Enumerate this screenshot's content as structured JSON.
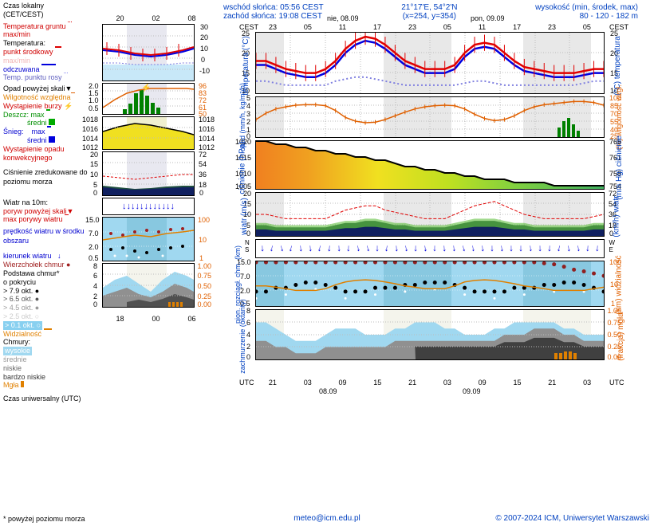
{
  "header": {
    "sunrise": "wschód słońca: 05:56 CEST",
    "sunset": "zachód słońca: 19:08 CEST",
    "coords": "21°17'E, 54°2'N",
    "grid": "(x=254, y=354)",
    "alt_label": "wysokość (min, środek, max)",
    "alt_vals": "80 - 120 - 182 m",
    "date1": "nie, 08.09",
    "date2": "pon, 09.09"
  },
  "legend": {
    "czas_lokalny": "Czas lokalny",
    "tz": "(CET/CEST)",
    "temp_gruntu": "Temperatura gruntu",
    "max_min": "max/min",
    "temp": "Temperatura:",
    "punkt_srodkowy": "punkt środkowy",
    "max_min2": "max/min",
    "odczuwana": "odczuwana",
    "temp_rosy": "Temp. punktu rosy",
    "opad_skali": "Opad powyżej skali",
    "wilgotnosc": "Wilgotność względna",
    "burza": "Wystąpienie burzy",
    "deszcz": "Deszcz:",
    "max": "max",
    "sredni": "średni",
    "snieg": "Śnieg:",
    "konwek": "Wystąpienie opadu konwekcyjnego",
    "cisnienie": "Ciśnienie zredukowane do poziomu morza",
    "wiatr_10m": "Wiatr na 10m:",
    "poryw_skali": "poryw powyżej skali",
    "max_porywy": "max porywy wiatru",
    "predkosc": "prędkość wiatru w środku obszaru",
    "kierunek": "kierunek wiatru",
    "wierzcholek": "Wierzchołek chmur",
    "podstawa": "Podstawa chmur*",
    "pokrycie": "o pokryciu",
    "okt79": "> 7.9 okt.",
    "okt65": "> 6.5 okt.",
    "okt45": "> 4.5 okt.",
    "okt25": "> 2.5 okt.",
    "okt01": "> 0.1 okt.",
    "widzialnosc": "Widzialność",
    "chmury": "Chmury:",
    "wysokie": "wysokie",
    "srednie": "średnie",
    "niskie": "niskie",
    "bardzo_niskie": "bardzo niskie",
    "mgla": "Mgła",
    "czas_utc": "Czas uniwersalny (UTC)",
    "footnote": "* powyżej poziomu morza"
  },
  "axis": {
    "cest": "CEST",
    "utc": "UTC",
    "ns": "N",
    "ss": "S",
    "es": "E",
    "ws": "W"
  },
  "footer": {
    "email": "meteo@icm.edu.pl",
    "copy": "© 2007-2024 ICM, Uniwersytet Warszawski"
  },
  "charts": {
    "temp": {
      "type": "line",
      "ylim_left": [
        -10,
        30
      ],
      "yticks_left": [
        -10,
        0,
        10,
        20,
        30
      ],
      "ylim_right_large": [
        10,
        25
      ],
      "yticks_right_large": [
        10,
        15,
        20,
        25
      ],
      "red_line": [
        18,
        18,
        17,
        16,
        15.5,
        15,
        15,
        16,
        18,
        21,
        23,
        24,
        23.5,
        22,
        20,
        18,
        17,
        16,
        16,
        16,
        17,
        20,
        22,
        22.5,
        22,
        20,
        18,
        16.5,
        16,
        15.5,
        15,
        15,
        15,
        15.5,
        16,
        16
      ],
      "blue_line": [
        17,
        17,
        16,
        15,
        14.5,
        14,
        14,
        15,
        17,
        20,
        22,
        23,
        22.5,
        21,
        19,
        17,
        16,
        15,
        15,
        15,
        16,
        19,
        21,
        21.5,
        21,
        19,
        17,
        15.5,
        15,
        14.5,
        14,
        14,
        14,
        14.5,
        15,
        15
      ],
      "purple_dotted": [
        13,
        13,
        12.5,
        12,
        12,
        12,
        12,
        12,
        13,
        13.5,
        14,
        14,
        13.5,
        13,
        12.5,
        12,
        12,
        12,
        12,
        12,
        12,
        12.5,
        13,
        13,
        12.5,
        12,
        12,
        12,
        12,
        12,
        12,
        12,
        12,
        12.5,
        13,
        13
      ],
      "colors": {
        "red": "#e00000",
        "blue": "#0000e0",
        "purple": "#8080e0",
        "bg_sky": "#a0d0f0"
      }
    },
    "precip": {
      "type": "bar+line",
      "ylim_left": [
        0,
        2.0
      ],
      "yticks_left": [
        0.5,
        1.0,
        1.5,
        2.0
      ],
      "ylim_right": [
        50,
        96
      ],
      "yticks_right": [
        50,
        61,
        72,
        83,
        96
      ],
      "ylim_right_large": [
        25,
        100
      ],
      "yticks_right_large": [
        25,
        40,
        55,
        70,
        85,
        100
      ],
      "ylim_left_large": [
        0,
        5
      ],
      "yticks_left_large": [
        0,
        1,
        2,
        3,
        4,
        5
      ],
      "humidity_line": [
        58,
        70,
        78,
        82,
        85,
        86,
        86,
        84,
        75,
        62,
        55,
        52,
        53,
        58,
        65,
        72,
        78,
        82,
        84,
        85,
        84,
        78,
        68,
        60,
        56,
        58,
        65,
        75,
        82,
        86,
        88,
        90,
        92,
        92,
        90,
        85
      ],
      "green_bars_small": [
        0,
        0,
        0.2,
        0.5,
        1.2,
        1.4,
        1.0,
        0.8,
        0.3,
        0,
        0,
        0
      ],
      "colors": {
        "green": "#008000",
        "orange": "#e06000"
      }
    },
    "press": {
      "type": "area",
      "ylim_left_small": [
        1012,
        1018
      ],
      "yticks_left_small": [
        1012,
        1014,
        1016,
        1018
      ],
      "ylim_left_large": [
        1005,
        1020
      ],
      "yticks_left_large": [
        1005,
        1010,
        1015,
        1020
      ],
      "ylim_right_large": [
        754,
        765
      ],
      "yticks_right_large": [
        754,
        758,
        761,
        765
      ],
      "values": [
        1020,
        1020,
        1019,
        1019,
        1018,
        1018,
        1017,
        1017,
        1016,
        1016,
        1015,
        1015,
        1014,
        1014,
        1013,
        1012,
        1012,
        1011,
        1011,
        1010,
        1010,
        1009,
        1009,
        1008,
        1008,
        1008,
        1007,
        1007,
        1007,
        1007,
        1006,
        1006,
        1006,
        1006,
        1006,
        1006
      ],
      "gradient_colors": [
        "#f08020",
        "#f0b020",
        "#f0e020",
        "#d0e020",
        "#a0e020",
        "#60d040",
        "#40c060"
      ]
    },
    "wind": {
      "type": "area+line",
      "ylim_left": [
        0,
        20
      ],
      "yticks_left": [
        0,
        5,
        10,
        15,
        20
      ],
      "ylim_right": [
        0,
        72
      ],
      "yticks_right": [
        0,
        18,
        36,
        54,
        72
      ],
      "speed": [
        5,
        5,
        4,
        4,
        4,
        4,
        4,
        4,
        5,
        6,
        6,
        7,
        7,
        6,
        5,
        5,
        4,
        4,
        4,
        4,
        5,
        6,
        7,
        7,
        7,
        6,
        5,
        5,
        4,
        4,
        4,
        4,
        4,
        4,
        5,
        5
      ],
      "gust": [
        10,
        10,
        9,
        8,
        8,
        8,
        8,
        8,
        10,
        12,
        13,
        14,
        14,
        12,
        11,
        10,
        9,
        8,
        8,
        8,
        10,
        12,
        14,
        15,
        16,
        14,
        12,
        10,
        9,
        8,
        8,
        8,
        8,
        8,
        9,
        10
      ],
      "colors": {
        "dark_green": "#205030",
        "mid_green": "#308040",
        "light_green": "#60c040",
        "red_dash": "#e00000",
        "navy": "#102060"
      }
    },
    "winddir": {
      "arrows_count": 36,
      "color": "#0000e0"
    },
    "clouds": {
      "type": "scatter+line",
      "ylim_left": [
        0.5,
        15.0
      ],
      "yticks_left": [
        0.5,
        2.0,
        7.0,
        15.0
      ],
      "ylim_right": [
        1,
        100
      ],
      "yticks_right": [
        1,
        10,
        100
      ],
      "bg": "#a0d8f0",
      "dark_red_dots_y": [
        14,
        14,
        14,
        14,
        14,
        14,
        14,
        14,
        14,
        14,
        14,
        14,
        14,
        14,
        14,
        14,
        14,
        14,
        14,
        14,
        14,
        14,
        14,
        14,
        14,
        14,
        14,
        14,
        14,
        13,
        12,
        10,
        8,
        7,
        6,
        5
      ],
      "black_dots_y": [
        1.5,
        1.5,
        2,
        2,
        2.5,
        3,
        3,
        2.5,
        2,
        1.5,
        1.5,
        1.5,
        2,
        2,
        2,
        2.5,
        2.5,
        3,
        3,
        3,
        2.5,
        2,
        1.5,
        1.5,
        1.5,
        1.5,
        2,
        2,
        2,
        2.5,
        2.5,
        3,
        3,
        2.5,
        2,
        1.5
      ],
      "orange_line": [
        8,
        8,
        7,
        6,
        5,
        5,
        5,
        6,
        9,
        12,
        14,
        15,
        14,
        12,
        10,
        8,
        7,
        6,
        6,
        6,
        8,
        12,
        14,
        15,
        14,
        12,
        10,
        8,
        7,
        6,
        5,
        5,
        5,
        5,
        6,
        7
      ]
    },
    "fog": {
      "type": "area",
      "ylim_left": [
        0,
        8
      ],
      "yticks_left": [
        0,
        2,
        4,
        6,
        8
      ],
      "ylim_right": [
        0,
        1.0
      ],
      "yticks_right": [
        0,
        0.25,
        0.5,
        0.75,
        1.0
      ],
      "high_clouds": [
        6,
        6,
        5,
        4,
        3,
        3,
        3,
        4,
        5,
        5,
        5,
        4,
        4,
        4,
        5,
        5,
        6,
        6,
        6,
        5,
        5,
        4,
        4,
        4,
        5,
        5,
        6,
        6,
        6,
        6,
        6,
        5,
        5,
        4,
        4,
        4
      ],
      "mid_clouds": [
        3,
        3,
        2,
        2,
        1,
        1,
        1,
        2,
        2,
        2,
        2,
        2,
        2,
        2,
        3,
        3,
        3,
        3,
        3,
        3,
        3,
        3,
        3,
        3,
        3,
        4,
        4,
        4,
        5,
        5,
        5,
        4,
        4,
        3,
        3,
        3
      ],
      "colors": {
        "sky": "#a0d8f0",
        "grey_mid": "#808080",
        "grey_dark": "#404040",
        "white": "#fff"
      }
    },
    "time_ticks_small_top": [
      "20",
      "02",
      "08"
    ],
    "time_ticks_small_bot": [
      "18",
      "00",
      "06"
    ],
    "time_ticks_large_top": [
      "23",
      "05",
      "11",
      "17",
      "23",
      "05",
      "11",
      "17",
      "23",
      "05"
    ],
    "time_ticks_large_bot": [
      "21",
      "03",
      "09",
      "15",
      "21",
      "03",
      "09",
      "15",
      "21",
      "03"
    ],
    "date_bot": [
      "08.09",
      "09.09"
    ]
  },
  "ylabels": {
    "temp_l": "temperatura (°C)",
    "temp_r": "(°C) temperatura",
    "opad_l": "opad (mm/h, kg/m²/h)",
    "wilg_r": "(%) wilgotność wzgl.",
    "cisn_l": "ciśnienie (hPa)",
    "cisn_r": "(mm Hg) ciśnienie",
    "wiatr_l": "wiatr (m/s)",
    "wiatr_r": "(km/h) wiatr",
    "chmur_l": "pion. rozciągł. chm. (km)",
    "widz_r": "(km) widzialność",
    "zachm_l": "zachmurzenie (oktanty)",
    "mgla_r": "(frakcja) mgła"
  }
}
